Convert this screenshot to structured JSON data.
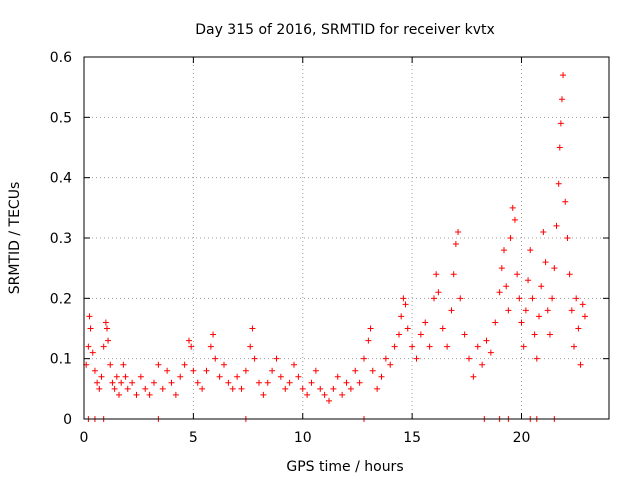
{
  "chart_data": {
    "type": "scatter",
    "title": "Day 315 of 2016, SRMTID for receiver kvtx",
    "xlabel": "GPS time / hours",
    "ylabel": "SRMTID / TECUs",
    "xlim": [
      0,
      24
    ],
    "ylim": [
      0,
      0.6
    ],
    "x_ticks": [
      0,
      5,
      10,
      15,
      20
    ],
    "x_tick_labels": [
      "0",
      "5",
      "10",
      "15",
      "20"
    ],
    "y_ticks": [
      0,
      0.1,
      0.2,
      0.3,
      0.4,
      0.5,
      0.6
    ],
    "y_tick_labels": [
      "0",
      "0.1",
      "0.2",
      "0.3",
      "0.4",
      "0.5",
      "0.6"
    ],
    "grid": true,
    "marker": "plus",
    "marker_color": "#ff0000",
    "series": [
      {
        "name": "SRMTID",
        "points": [
          [
            0.1,
            0.09
          ],
          [
            0.2,
            0.12
          ],
          [
            0.25,
            0.17
          ],
          [
            0.3,
            0.15
          ],
          [
            0.4,
            0.11
          ],
          [
            0.5,
            0.08
          ],
          [
            0.6,
            0.06
          ],
          [
            0.7,
            0.05
          ],
          [
            0.8,
            0.07
          ],
          [
            0.9,
            0.12
          ],
          [
            1.0,
            0.16
          ],
          [
            1.05,
            0.15
          ],
          [
            1.1,
            0.13
          ],
          [
            1.2,
            0.09
          ],
          [
            1.3,
            0.06
          ],
          [
            1.4,
            0.05
          ],
          [
            1.5,
            0.07
          ],
          [
            1.6,
            0.04
          ],
          [
            1.7,
            0.06
          ],
          [
            1.8,
            0.09
          ],
          [
            1.9,
            0.07
          ],
          [
            2.0,
            0.05
          ],
          [
            2.2,
            0.06
          ],
          [
            2.4,
            0.04
          ],
          [
            2.6,
            0.07
          ],
          [
            2.8,
            0.05
          ],
          [
            3.0,
            0.04
          ],
          [
            3.2,
            0.06
          ],
          [
            3.4,
            0.09
          ],
          [
            3.6,
            0.05
          ],
          [
            3.8,
            0.08
          ],
          [
            4.0,
            0.06
          ],
          [
            4.2,
            0.04
          ],
          [
            4.4,
            0.07
          ],
          [
            4.6,
            0.09
          ],
          [
            4.8,
            0.13
          ],
          [
            4.9,
            0.12
          ],
          [
            5.0,
            0.08
          ],
          [
            5.2,
            0.06
          ],
          [
            5.4,
            0.05
          ],
          [
            5.6,
            0.08
          ],
          [
            5.8,
            0.12
          ],
          [
            5.9,
            0.14
          ],
          [
            6.0,
            0.1
          ],
          [
            6.2,
            0.07
          ],
          [
            6.4,
            0.09
          ],
          [
            6.6,
            0.06
          ],
          [
            6.8,
            0.05
          ],
          [
            7.0,
            0.07
          ],
          [
            7.2,
            0.05
          ],
          [
            7.4,
            0.08
          ],
          [
            7.6,
            0.12
          ],
          [
            7.7,
            0.15
          ],
          [
            7.8,
            0.1
          ],
          [
            8.0,
            0.06
          ],
          [
            8.2,
            0.04
          ],
          [
            8.4,
            0.06
          ],
          [
            8.6,
            0.08
          ],
          [
            8.8,
            0.1
          ],
          [
            9.0,
            0.07
          ],
          [
            9.2,
            0.05
          ],
          [
            9.4,
            0.06
          ],
          [
            9.6,
            0.09
          ],
          [
            9.8,
            0.07
          ],
          [
            10.0,
            0.05
          ],
          [
            10.2,
            0.04
          ],
          [
            10.4,
            0.06
          ],
          [
            10.6,
            0.08
          ],
          [
            10.8,
            0.05
          ],
          [
            11.0,
            0.04
          ],
          [
            11.2,
            0.03
          ],
          [
            11.4,
            0.05
          ],
          [
            11.6,
            0.07
          ],
          [
            11.8,
            0.04
          ],
          [
            12.0,
            0.06
          ],
          [
            12.2,
            0.05
          ],
          [
            12.4,
            0.08
          ],
          [
            12.6,
            0.06
          ],
          [
            12.8,
            0.1
          ],
          [
            13.0,
            0.13
          ],
          [
            13.1,
            0.15
          ],
          [
            13.2,
            0.08
          ],
          [
            13.4,
            0.05
          ],
          [
            13.6,
            0.07
          ],
          [
            13.8,
            0.1
          ],
          [
            14.0,
            0.09
          ],
          [
            14.2,
            0.12
          ],
          [
            14.4,
            0.14
          ],
          [
            14.5,
            0.17
          ],
          [
            14.6,
            0.2
          ],
          [
            14.7,
            0.19
          ],
          [
            14.8,
            0.15
          ],
          [
            15.0,
            0.12
          ],
          [
            15.2,
            0.1
          ],
          [
            15.4,
            0.14
          ],
          [
            15.6,
            0.16
          ],
          [
            15.8,
            0.12
          ],
          [
            16.0,
            0.2
          ],
          [
            16.1,
            0.24
          ],
          [
            16.2,
            0.21
          ],
          [
            16.4,
            0.15
          ],
          [
            16.6,
            0.12
          ],
          [
            16.8,
            0.18
          ],
          [
            16.9,
            0.24
          ],
          [
            17.0,
            0.29
          ],
          [
            17.1,
            0.31
          ],
          [
            17.2,
            0.2
          ],
          [
            17.4,
            0.14
          ],
          [
            17.6,
            0.1
          ],
          [
            17.8,
            0.07
          ],
          [
            18.0,
            0.12
          ],
          [
            18.2,
            0.09
          ],
          [
            18.4,
            0.13
          ],
          [
            18.6,
            0.11
          ],
          [
            18.8,
            0.16
          ],
          [
            19.0,
            0.21
          ],
          [
            19.1,
            0.25
          ],
          [
            19.2,
            0.28
          ],
          [
            19.3,
            0.22
          ],
          [
            19.4,
            0.18
          ],
          [
            19.5,
            0.3
          ],
          [
            19.6,
            0.35
          ],
          [
            19.7,
            0.33
          ],
          [
            19.8,
            0.24
          ],
          [
            19.9,
            0.2
          ],
          [
            20.0,
            0.16
          ],
          [
            20.1,
            0.12
          ],
          [
            20.2,
            0.18
          ],
          [
            20.3,
            0.23
          ],
          [
            20.4,
            0.28
          ],
          [
            20.5,
            0.2
          ],
          [
            20.6,
            0.14
          ],
          [
            20.7,
            0.1
          ],
          [
            20.8,
            0.17
          ],
          [
            20.9,
            0.22
          ],
          [
            21.0,
            0.31
          ],
          [
            21.1,
            0.26
          ],
          [
            21.2,
            0.18
          ],
          [
            21.3,
            0.14
          ],
          [
            21.4,
            0.2
          ],
          [
            21.5,
            0.25
          ],
          [
            21.6,
            0.32
          ],
          [
            21.7,
            0.39
          ],
          [
            21.75,
            0.45
          ],
          [
            21.8,
            0.49
          ],
          [
            21.85,
            0.53
          ],
          [
            21.9,
            0.57
          ],
          [
            22.0,
            0.36
          ],
          [
            22.1,
            0.3
          ],
          [
            22.2,
            0.24
          ],
          [
            22.3,
            0.18
          ],
          [
            22.4,
            0.12
          ],
          [
            22.5,
            0.2
          ],
          [
            22.6,
            0.15
          ],
          [
            22.7,
            0.09
          ],
          [
            22.8,
            0.19
          ],
          [
            22.9,
            0.17
          ],
          [
            0.2,
            0.0
          ],
          [
            0.5,
            0.0
          ],
          [
            0.9,
            0.0
          ],
          [
            3.4,
            0.0
          ],
          [
            7.4,
            0.0
          ],
          [
            12.8,
            0.0
          ],
          [
            18.3,
            0.0
          ],
          [
            19.0,
            0.0
          ],
          [
            19.4,
            0.0
          ],
          [
            20.4,
            0.0
          ],
          [
            20.7,
            0.0
          ],
          [
            21.5,
            0.0
          ]
        ]
      }
    ]
  }
}
